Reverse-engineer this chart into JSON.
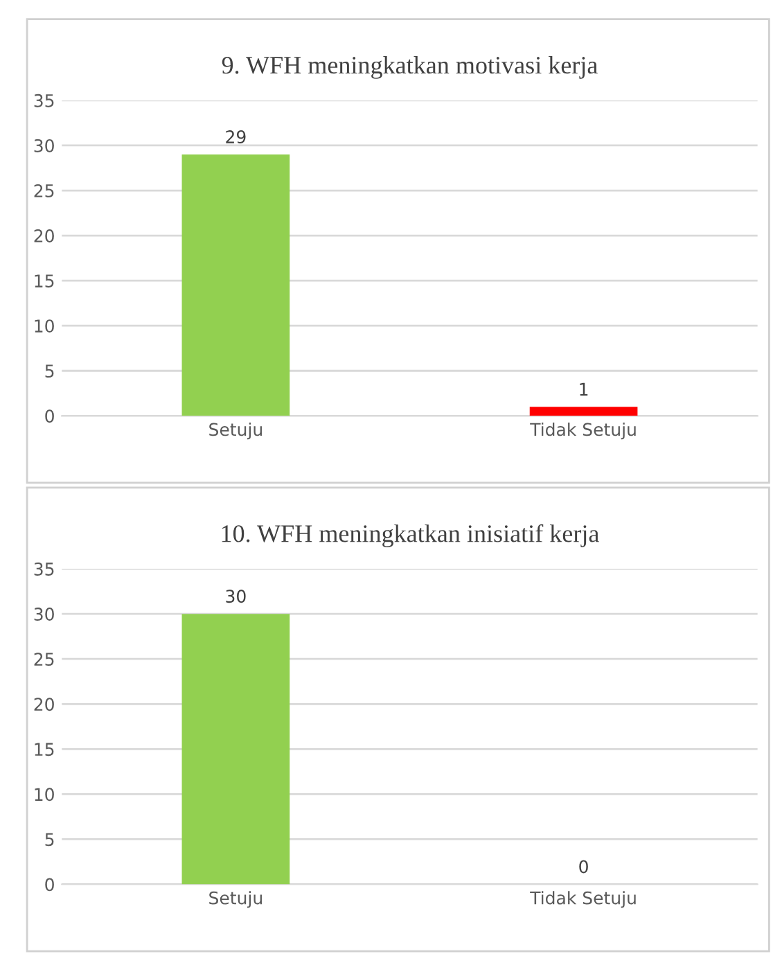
{
  "chart_data": [
    {
      "type": "bar",
      "title": "9. WFH meningkatkan motivasi kerja",
      "categories": [
        "Setuju",
        "Tidak Setuju"
      ],
      "values": [
        29,
        1
      ],
      "colors": [
        "#92d050",
        "#ff0000"
      ],
      "ylim": [
        0,
        35
      ],
      "yticks": [
        0,
        5,
        10,
        15,
        20,
        25,
        30,
        35
      ],
      "grid": "y",
      "data_labels": true
    },
    {
      "type": "bar",
      "title": "10. WFH meningkatkan inisiatif kerja",
      "categories": [
        "Setuju",
        "Tidak Setuju"
      ],
      "values": [
        30,
        0
      ],
      "colors": [
        "#92d050",
        "#ff0000"
      ],
      "ylim": [
        0,
        35
      ],
      "yticks": [
        0,
        5,
        10,
        15,
        20,
        25,
        30,
        35
      ],
      "grid": "y",
      "data_labels": true
    }
  ]
}
